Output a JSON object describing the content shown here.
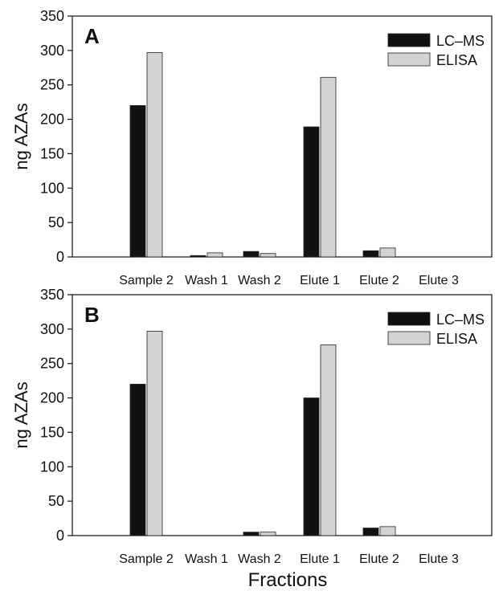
{
  "figure": {
    "xlabel": "Fractions"
  },
  "chart_data": [
    {
      "type": "bar",
      "panel_label": "A",
      "ylabel": "ng AZAs",
      "xlabel": "",
      "categories": [
        "Sample 2",
        "Wash 1",
        "Wash 2",
        "Elute 1",
        "Elute 2",
        "Elute 3"
      ],
      "series": [
        {
          "name": "LC–MS",
          "values": [
            220,
            2,
            8,
            189,
            9,
            0
          ],
          "color": "#111111"
        },
        {
          "name": "ELISA",
          "values": [
            297,
            6,
            5,
            261,
            13,
            0
          ],
          "color": "#d3d3d3"
        }
      ],
      "ylim": [
        0,
        350
      ],
      "yticks": [
        0,
        50,
        100,
        150,
        200,
        250,
        300,
        350
      ],
      "legend": "top-right",
      "grid": false
    },
    {
      "type": "bar",
      "panel_label": "B",
      "ylabel": "ng AZAs",
      "xlabel": "",
      "categories": [
        "Sample 2",
        "Wash 1",
        "Wash 2",
        "Elute 1",
        "Elute 2",
        "Elute 3"
      ],
      "series": [
        {
          "name": "LC–MS",
          "values": [
            220,
            0,
            5,
            200,
            11,
            0
          ],
          "color": "#111111"
        },
        {
          "name": "ELISA",
          "values": [
            297,
            0,
            5,
            277,
            13,
            0
          ],
          "color": "#d3d3d3"
        }
      ],
      "ylim": [
        0,
        350
      ],
      "yticks": [
        0,
        50,
        100,
        150,
        200,
        250,
        300,
        350
      ],
      "legend": "top-right",
      "grid": false
    }
  ]
}
